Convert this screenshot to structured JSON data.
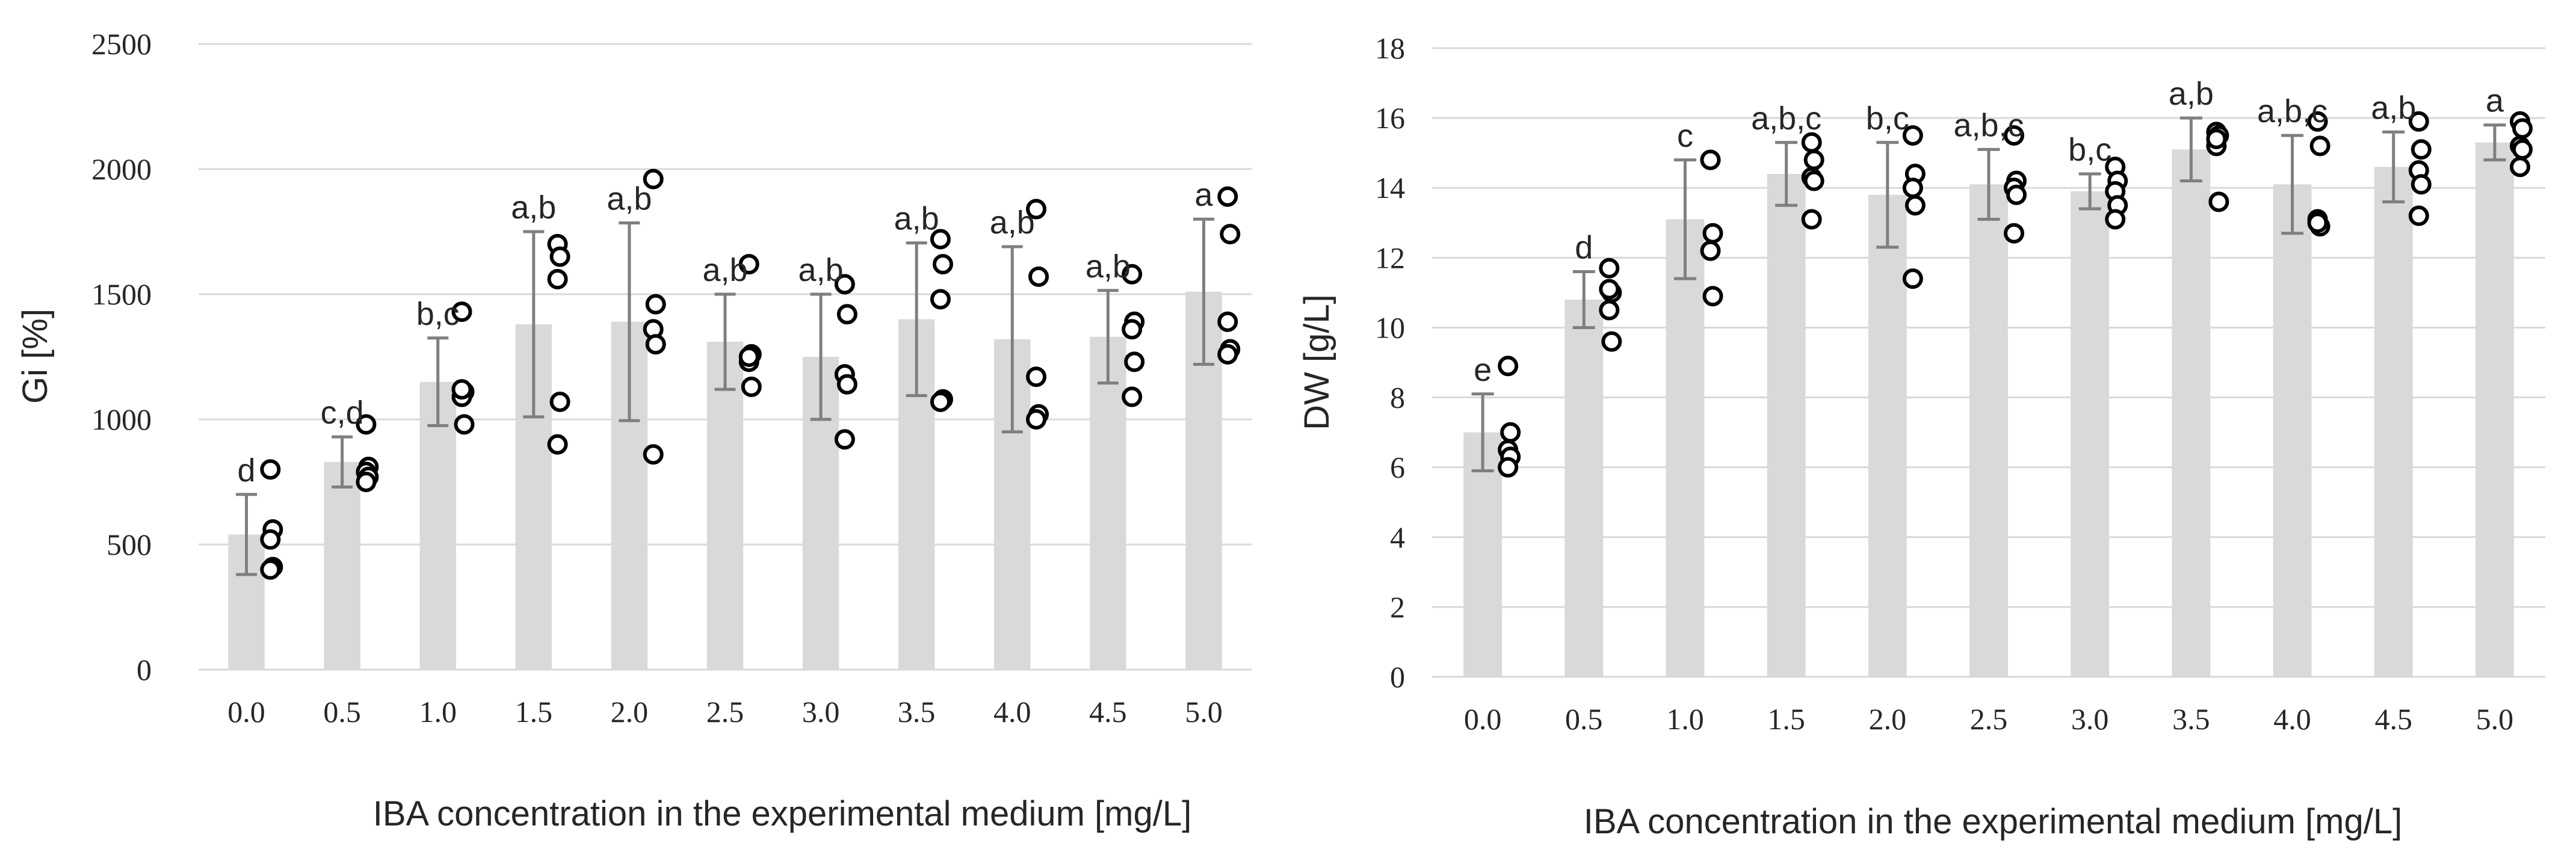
{
  "chart_data": [
    {
      "type": "bar",
      "title": "",
      "xlabel": "IBA concentration in the experimental medium [mg/L]",
      "ylabel": "Gi [%]",
      "ylim": [
        0,
        2500
      ],
      "yticks": [
        "0",
        "500",
        "1000",
        "1500",
        "2000",
        "2500"
      ],
      "categories": [
        "0.0",
        "0.5",
        "1.0",
        "1.5",
        "2.0",
        "2.5",
        "3.0",
        "3.5",
        "4.0",
        "4.5",
        "5.0"
      ],
      "values": [
        540,
        830,
        1150,
        1380,
        1390,
        1310,
        1250,
        1400,
        1320,
        1330,
        1510
      ],
      "error": [
        160,
        100,
        175,
        370,
        395,
        190,
        250,
        305,
        370,
        185,
        290
      ],
      "significance": [
        "d",
        "c,d",
        "b,c",
        "a,b",
        "a,b",
        "a,b",
        "a,b",
        "a,b",
        "a,b",
        "a,b",
        "a"
      ],
      "points": [
        [
          800,
          560,
          520,
          410,
          400
        ],
        [
          980,
          810,
          790,
          770,
          750
        ],
        [
          1430,
          1110,
          1090,
          980,
          1120
        ],
        [
          1700,
          1650,
          1560,
          1070,
          900
        ],
        [
          1960,
          1460,
          1360,
          1300,
          860
        ],
        [
          1620,
          1260,
          1230,
          1130,
          1250
        ],
        [
          1540,
          1420,
          1180,
          1140,
          920
        ],
        [
          1720,
          1620,
          1480,
          1080,
          1070
        ],
        [
          1840,
          1570,
          1170,
          1020,
          1000
        ],
        [
          1580,
          1390,
          1360,
          1230,
          1090
        ],
        [
          1890,
          1740,
          1390,
          1280,
          1260
        ]
      ],
      "grid": true,
      "colors": {
        "bar": "#d9d9d9",
        "error_bar": "#7f7f7f",
        "point": "#000000",
        "grid": "#d9d9d9"
      }
    },
    {
      "type": "bar",
      "title": "",
      "xlabel": "IBA concentration in the experimental medium [mg/L]",
      "ylabel": "DW [g/L]",
      "ylim": [
        0,
        18
      ],
      "yticks": [
        "0",
        "2",
        "4",
        "6",
        "8",
        "10",
        "12",
        "14",
        "16",
        "18"
      ],
      "categories": [
        "0.0",
        "0.5",
        "1.0",
        "1.5",
        "2.0",
        "2.5",
        "3.0",
        "3.5",
        "4.0",
        "4.5",
        "5.0"
      ],
      "values": [
        7.0,
        10.8,
        13.1,
        14.4,
        13.8,
        14.1,
        13.9,
        15.1,
        14.1,
        14.6,
        15.3
      ],
      "error": [
        1.1,
        0.8,
        1.7,
        0.9,
        1.5,
        1.0,
        0.5,
        0.9,
        1.4,
        1.0,
        0.5
      ],
      "significance": [
        "e",
        "d",
        "c",
        "a,b,c",
        "b,c",
        "a,b,c",
        "b,c",
        "a,b",
        "a,b,c",
        "a,b",
        "a"
      ],
      "points": [
        [
          8.9,
          7.0,
          6.5,
          6.3,
          6.0
        ],
        [
          11.7,
          11.0,
          10.5,
          9.6,
          11.1
        ],
        [
          14.8,
          12.7,
          12.2,
          10.9,
          14.8
        ],
        [
          15.3,
          14.8,
          14.3,
          14.2,
          13.1
        ],
        [
          15.5,
          14.4,
          14.0,
          13.5,
          11.4
        ],
        [
          15.5,
          14.2,
          14.0,
          13.8,
          12.7
        ],
        [
          14.6,
          14.2,
          13.9,
          13.5,
          13.1
        ],
        [
          15.6,
          15.5,
          15.2,
          13.6,
          15.4
        ],
        [
          15.9,
          15.2,
          13.1,
          12.9,
          13.0
        ],
        [
          15.9,
          15.1,
          14.5,
          14.1,
          13.2
        ],
        [
          15.9,
          15.7,
          15.2,
          15.1,
          14.6
        ]
      ],
      "grid": true,
      "colors": {
        "bar": "#d9d9d9",
        "error_bar": "#7f7f7f",
        "point": "#000000",
        "grid": "#d9d9d9"
      }
    }
  ]
}
